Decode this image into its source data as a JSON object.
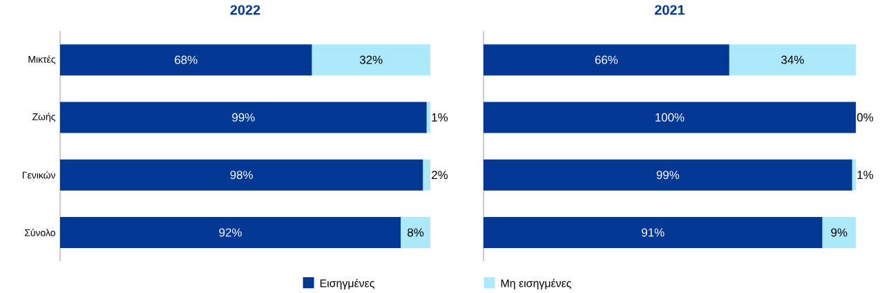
{
  "chart_data": [
    {
      "type": "bar",
      "title": "2022",
      "orientation": "horizontal",
      "stacked": true,
      "categories": [
        "Μικτές",
        "Ζωής",
        "Γενικών",
        "Σύνολο"
      ],
      "xlim": [
        0,
        100
      ],
      "tick_labels": "y",
      "legend": "bottom",
      "series": [
        {
          "name": "Εισηγμένες",
          "color": "#003893",
          "values": [
            68,
            99,
            98,
            92
          ],
          "value_labels": [
            "68%",
            "99%",
            "98%",
            "92%"
          ]
        },
        {
          "name": "Μη εισηγμένες",
          "color": "#aee8fb",
          "values": [
            32,
            1,
            2,
            8
          ],
          "value_labels": [
            "32%",
            "1%",
            "2%",
            "8%"
          ]
        }
      ]
    },
    {
      "type": "bar",
      "title": "2021",
      "orientation": "horizontal",
      "stacked": true,
      "categories": [
        null,
        null,
        null,
        null
      ],
      "xlim": [
        0,
        100
      ],
      "tick_labels": false,
      "series": [
        {
          "color": "#003893",
          "values": [
            66,
            100,
            99,
            91
          ],
          "value_labels": [
            "66%",
            "100%",
            "99%",
            "91%"
          ]
        },
        {
          "color": "#aee8fb",
          "values": [
            34,
            0,
            1,
            9
          ],
          "value_labels": [
            "34%",
            "0%",
            "1%",
            "9%"
          ]
        }
      ]
    }
  ]
}
